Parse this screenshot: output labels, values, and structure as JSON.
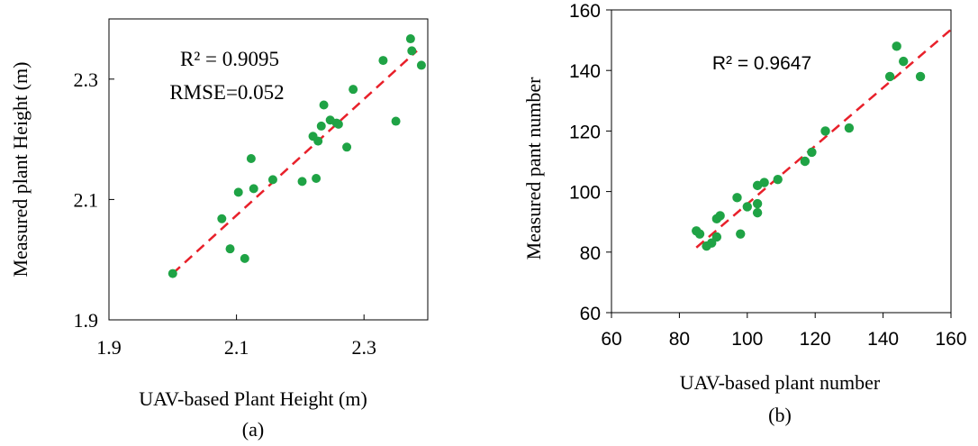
{
  "chart_data": [
    {
      "type": "scatter",
      "panel_label": "(a)",
      "xlabel": "UAV-based Plant Height (m)",
      "ylabel": "Measured plant Height (m)",
      "xlim": [
        1.9,
        2.4
      ],
      "ylim": [
        1.9,
        2.4
      ],
      "xticks": [
        1.9,
        2.1,
        2.3
      ],
      "yticks": [
        1.9,
        2.1,
        2.3
      ],
      "tick_labels_x": [
        "1.9",
        "2.1",
        "2.3"
      ],
      "tick_labels_y": [
        "1.9",
        "2.1",
        "2.3"
      ],
      "annotations": [
        "R² = 0.9095",
        "RMSE=0.052"
      ],
      "trendline": {
        "x": [
          2.0,
          2.383
        ],
        "y": [
          1.977,
          2.347
        ],
        "color": "#e8202a",
        "style": "dashed"
      },
      "marker_color": "#1fa345",
      "points": [
        [
          2.0,
          1.977
        ],
        [
          2.077,
          2.068
        ],
        [
          2.09,
          2.018
        ],
        [
          2.103,
          2.112
        ],
        [
          2.113,
          2.002
        ],
        [
          2.123,
          2.168
        ],
        [
          2.127,
          2.118
        ],
        [
          2.157,
          2.133
        ],
        [
          2.203,
          2.13
        ],
        [
          2.22,
          2.205
        ],
        [
          2.225,
          2.135
        ],
        [
          2.228,
          2.197
        ],
        [
          2.233,
          2.222
        ],
        [
          2.237,
          2.257
        ],
        [
          2.247,
          2.232
        ],
        [
          2.257,
          2.227
        ],
        [
          2.26,
          2.225
        ],
        [
          2.273,
          2.187
        ],
        [
          2.283,
          2.283
        ],
        [
          2.33,
          2.331
        ],
        [
          2.35,
          2.23
        ],
        [
          2.373,
          2.367
        ],
        [
          2.375,
          2.347
        ],
        [
          2.39,
          2.323
        ]
      ]
    },
    {
      "type": "scatter",
      "panel_label": "(b)",
      "xlabel": "UAV-based plant number",
      "ylabel": "Measured pant number",
      "xlim": [
        60,
        160
      ],
      "ylim": [
        60,
        160
      ],
      "xticks": [
        60,
        80,
        100,
        120,
        140,
        160
      ],
      "yticks": [
        60,
        80,
        100,
        120,
        140,
        160
      ],
      "tick_labels_x": [
        "60",
        "80",
        "100",
        "120",
        "140",
        "160"
      ],
      "tick_labels_y": [
        "60",
        "80",
        "100",
        "120",
        "140",
        "160"
      ],
      "annotations": [
        "R² = 0.9647"
      ],
      "trendline": {
        "x": [
          85,
          160
        ],
        "y": [
          81.5,
          153.5
        ],
        "color": "#e8202a",
        "style": "dashed"
      },
      "marker_color": "#1fa345",
      "points": [
        [
          85,
          87
        ],
        [
          86,
          86
        ],
        [
          88,
          82
        ],
        [
          89.5,
          83
        ],
        [
          91,
          85
        ],
        [
          91,
          91
        ],
        [
          92,
          92
        ],
        [
          97,
          98
        ],
        [
          98,
          86
        ],
        [
          100,
          95
        ],
        [
          103,
          93
        ],
        [
          103,
          96
        ],
        [
          103,
          102
        ],
        [
          105,
          103
        ],
        [
          109,
          104
        ],
        [
          117,
          110
        ],
        [
          119,
          113
        ],
        [
          123,
          120
        ],
        [
          130,
          121
        ],
        [
          142,
          138
        ],
        [
          144,
          148
        ],
        [
          146,
          143
        ],
        [
          151,
          138
        ]
      ]
    }
  ]
}
